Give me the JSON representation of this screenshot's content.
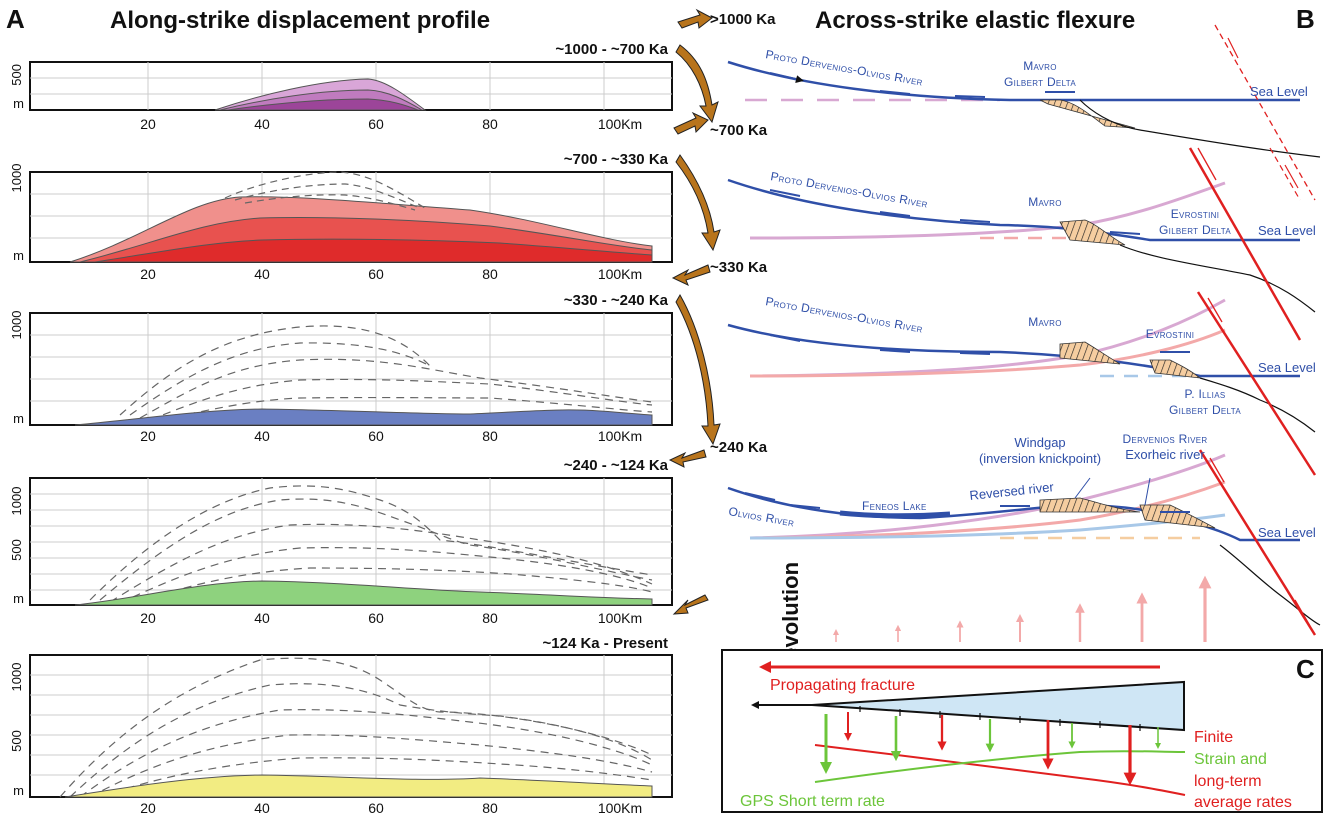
{
  "panel_a": {
    "letter": "A",
    "title": "Along-strike displacement profile",
    "x_ticks": [
      "20",
      "40",
      "60",
      "80",
      "100Km"
    ],
    "stages": [
      {
        "label": "~1000 - ~700 Ka",
        "y_ticks": [
          "500",
          "m"
        ],
        "fill_color": "#b457b1"
      },
      {
        "label": "~700 - ~330 Ka",
        "y_ticks": [
          "1000",
          "m"
        ],
        "fill_color": "#e84a4a"
      },
      {
        "label": "~330 - ~240 Ka",
        "y_ticks": [
          "1000",
          "m"
        ],
        "fill_color": "#6a7fc2"
      },
      {
        "label": "~240 - ~124 Ka",
        "y_ticks": [
          "1000",
          "500",
          "m"
        ],
        "fill_color": "#8ed27e"
      },
      {
        "label": "~124 Ka - Present",
        "y_ticks": [
          "1000",
          "500",
          "m"
        ],
        "fill_color": "#f2ec82"
      }
    ]
  },
  "time_arrows": [
    ">1000 Ka",
    "~700 Ka",
    "~330 Ka",
    "~240 Ka"
  ],
  "time_axis_label": "Time-evolution",
  "panel_b": {
    "letter": "B",
    "title": "Across-strike elastic flexure",
    "labels": {
      "proto_river": "Proto Dervenios-Olvios River",
      "mavro_gilbert_1": "Mavro",
      "mavro_gilbert_2": "Gilbert Delta",
      "sea_level": "Sea Level",
      "mavro": "Mavro",
      "evrostini_1": "Evrostini",
      "evrostini_2": "Gilbert Delta",
      "evrostini": "Evrostini",
      "p_illias_1": "P. Illias",
      "p_illias_2": "Gilbert Delta",
      "windgap_1": "Windgap",
      "windgap_2": "(inversion knickpoint)",
      "dervenios_1": "Dervenios River",
      "dervenios_2": "Exorheic river",
      "olvios": "Olvios River",
      "feneos": "Feneos Lake",
      "reversed": "Reversed river"
    }
  },
  "panel_c": {
    "letter": "C",
    "propagating": "Propagating fracture",
    "finite_1": "Finite",
    "finite_2": "Strain and",
    "finite_3": "long-term",
    "finite_4": "average rates",
    "gps": "GPS Short term rate"
  },
  "colors": {
    "blue_river": "#2f4fa8",
    "fault_red": "#e02020",
    "gps_green": "#6cc53a",
    "arrow_brown": "#b8741c",
    "delta_fill": "#f5cda0"
  }
}
